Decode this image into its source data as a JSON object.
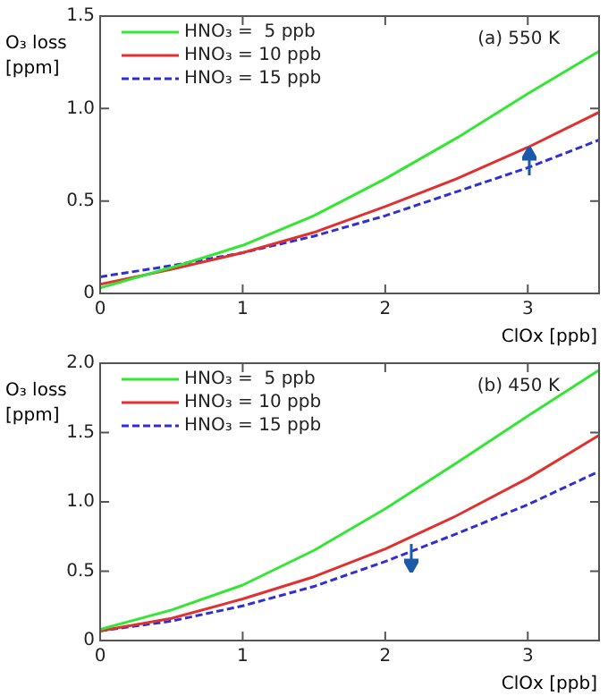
{
  "chart_data": [
    {
      "type": "line",
      "ylabel": "O₃ loss [ppm]",
      "xlabel": "ClOx [ppb]",
      "annotations": [
        "(a) 550 K"
      ],
      "x": [
        0,
        0.5,
        1,
        1.5,
        2,
        2.5,
        3,
        3.5
      ],
      "xlim": [
        0,
        3.5
      ],
      "xticks": [
        0,
        1,
        2,
        3
      ],
      "ylim": [
        0,
        1.5
      ],
      "yticks": [
        0,
        {
          "value": 0.5,
          "label": "0.5"
        },
        {
          "value": 1,
          "label": "1.0"
        },
        {
          "value": 1.5,
          "label": "1.5"
        }
      ],
      "grid": false,
      "legend": "top left",
      "marker": "none",
      "series": [
        {
          "name": "HNO₃ =  5 ppb",
          "color": "#33e633",
          "values": [
            0.03,
            0.14,
            0.26,
            0.42,
            0.62,
            0.84,
            1.08,
            1.31
          ]
        },
        {
          "name": "HNO₃ = 10 ppb",
          "color": "#e03030",
          "values": [
            0.05,
            0.13,
            0.22,
            0.33,
            0.47,
            0.62,
            0.79,
            0.98
          ]
        },
        {
          "name": "HNO₃ = 15 ppb",
          "color": "#3030d0",
          "line_style": "dashed",
          "values": [
            0.09,
            0.15,
            0.22,
            0.31,
            0.42,
            0.55,
            0.68,
            0.83
          ]
        }
      ]
    },
    {
      "type": "line",
      "ylabel": "O₃ loss [ppm]",
      "xlabel": "ClOx [ppb]",
      "annotations": [
        "(b) 450 K"
      ],
      "x": [
        0,
        0.5,
        1,
        1.5,
        2,
        2.5,
        3,
        3.5
      ],
      "xlim": [
        0,
        3.5
      ],
      "xticks": [
        0,
        1,
        2,
        3
      ],
      "ylim": [
        0,
        2
      ],
      "yticks": [
        0,
        {
          "value": 0.5,
          "label": "0.5"
        },
        {
          "value": 1,
          "label": "1.0"
        },
        {
          "value": 1.5,
          "label": "1.5"
        },
        {
          "value": 2,
          "label": "2.0"
        }
      ],
      "grid": false,
      "legend": "top left",
      "marker": "none",
      "series": [
        {
          "name": "HNO₃ =  5 ppb",
          "color": "#33e633",
          "values": [
            0.08,
            0.22,
            0.4,
            0.65,
            0.95,
            1.28,
            1.62,
            1.95
          ]
        },
        {
          "name": "HNO₃ = 10 ppb",
          "color": "#e03030",
          "values": [
            0.07,
            0.16,
            0.3,
            0.46,
            0.66,
            0.9,
            1.17,
            1.48
          ]
        },
        {
          "name": "HNO₃ = 15 ppb",
          "color": "#3030d0",
          "line_style": "dashed",
          "values": [
            0.07,
            0.14,
            0.25,
            0.39,
            0.57,
            0.77,
            0.98,
            1.22
          ]
        }
      ]
    }
  ]
}
